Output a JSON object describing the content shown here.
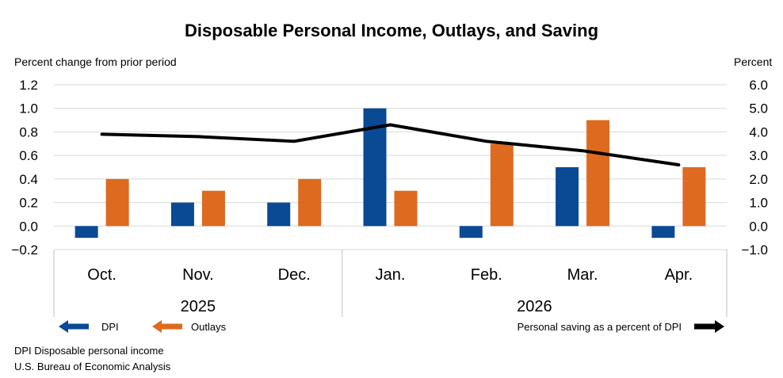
{
  "chart_data": {
    "type": "bar",
    "title": "Disposable Personal Income, Outlays, and Saving",
    "left_axis_label": "Percent change from prior period",
    "right_axis_label": "Percent",
    "categories": [
      "Oct.",
      "Nov.",
      "Dec.",
      "Jan.",
      "Feb.",
      "Mar.",
      "Apr."
    ],
    "category_groups": [
      {
        "label": "2025",
        "categories": [
          "Oct.",
          "Nov.",
          "Dec."
        ]
      },
      {
        "label": "2026",
        "categories": [
          "Jan.",
          "Feb.",
          "Mar.",
          "Apr."
        ]
      }
    ],
    "left_ylim": [
      -0.2,
      1.2
    ],
    "left_ticks": [
      "1.2",
      "1.0",
      "0.8",
      "0.6",
      "0.4",
      "0.2",
      "0.0",
      "−0.2"
    ],
    "right_ylim": [
      -1.0,
      6.0
    ],
    "right_ticks": [
      "6.0",
      "5.0",
      "4.0",
      "3.0",
      "2.0",
      "1.0",
      "0.0",
      "−1.0"
    ],
    "grid": true,
    "series": [
      {
        "name": "DPI",
        "kind": "bar",
        "axis": "left",
        "color": "#0a4a94",
        "values": [
          -0.1,
          0.2,
          0.2,
          1.0,
          -0.1,
          0.5,
          -0.1
        ]
      },
      {
        "name": "Outlays",
        "kind": "bar",
        "axis": "left",
        "color": "#dd6a1f",
        "values": [
          0.4,
          0.3,
          0.4,
          0.3,
          0.7,
          0.9,
          0.5
        ]
      },
      {
        "name": "Personal saving as a percent of DPI",
        "kind": "line",
        "axis": "right",
        "color": "#000000",
        "values": [
          3.9,
          3.8,
          3.6,
          4.3,
          3.6,
          3.2,
          2.6
        ]
      }
    ],
    "legend_placement": "bottom"
  },
  "footnotes": [
    "DPI Disposable personal income",
    "U.S. Bureau of Economic Analysis"
  ]
}
